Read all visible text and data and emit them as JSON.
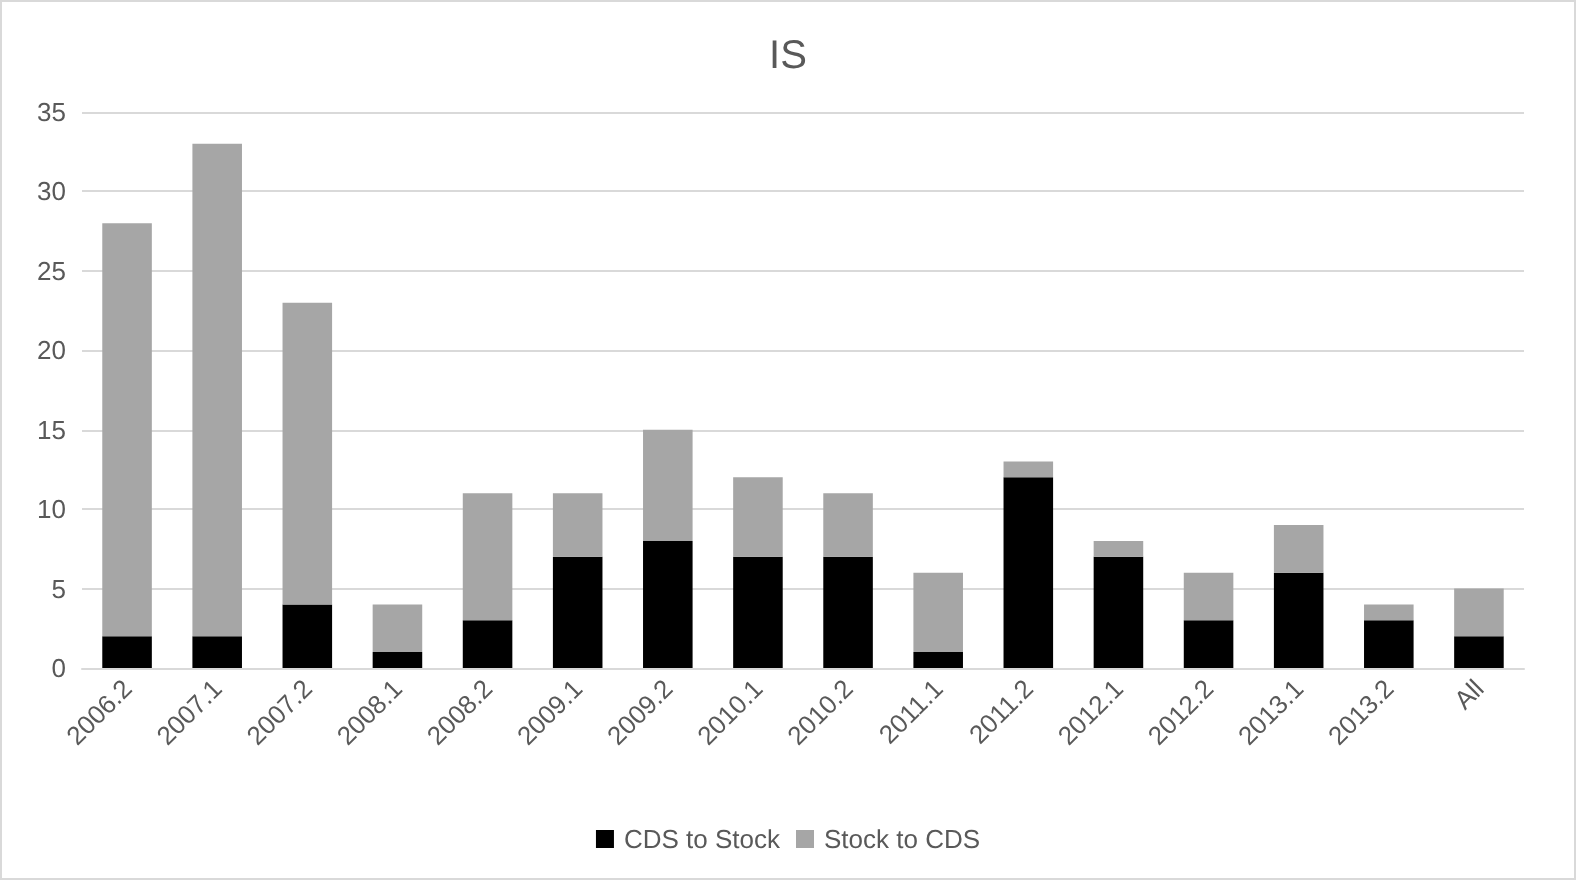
{
  "chart_data": {
    "type": "bar",
    "title": "IS",
    "stacked": true,
    "categories": [
      "2006.2",
      "2007.1",
      "2007.2",
      "2008.1",
      "2008.2",
      "2009.1",
      "2009.2",
      "2010.1",
      "2010.2",
      "2011.1",
      "2011.2",
      "2012.1",
      "2012.2",
      "2013.1",
      "2013.2",
      "All"
    ],
    "series": [
      {
        "name": "CDS to Stock",
        "color": "#000000",
        "values": [
          2,
          2,
          4,
          1,
          3,
          7,
          8,
          7,
          7,
          1,
          12,
          7,
          3,
          6,
          3,
          2
        ]
      },
      {
        "name": "Stock to CDS",
        "color": "#a6a6a6",
        "values": [
          26,
          31,
          19,
          3,
          8,
          4,
          7,
          5,
          4,
          5,
          1,
          1,
          3,
          3,
          1,
          3
        ]
      }
    ],
    "ylim": [
      0,
      35
    ],
    "yticks": [
      0,
      5,
      10,
      15,
      20,
      25,
      30,
      35
    ],
    "grid": "y",
    "legend": "bottom"
  }
}
